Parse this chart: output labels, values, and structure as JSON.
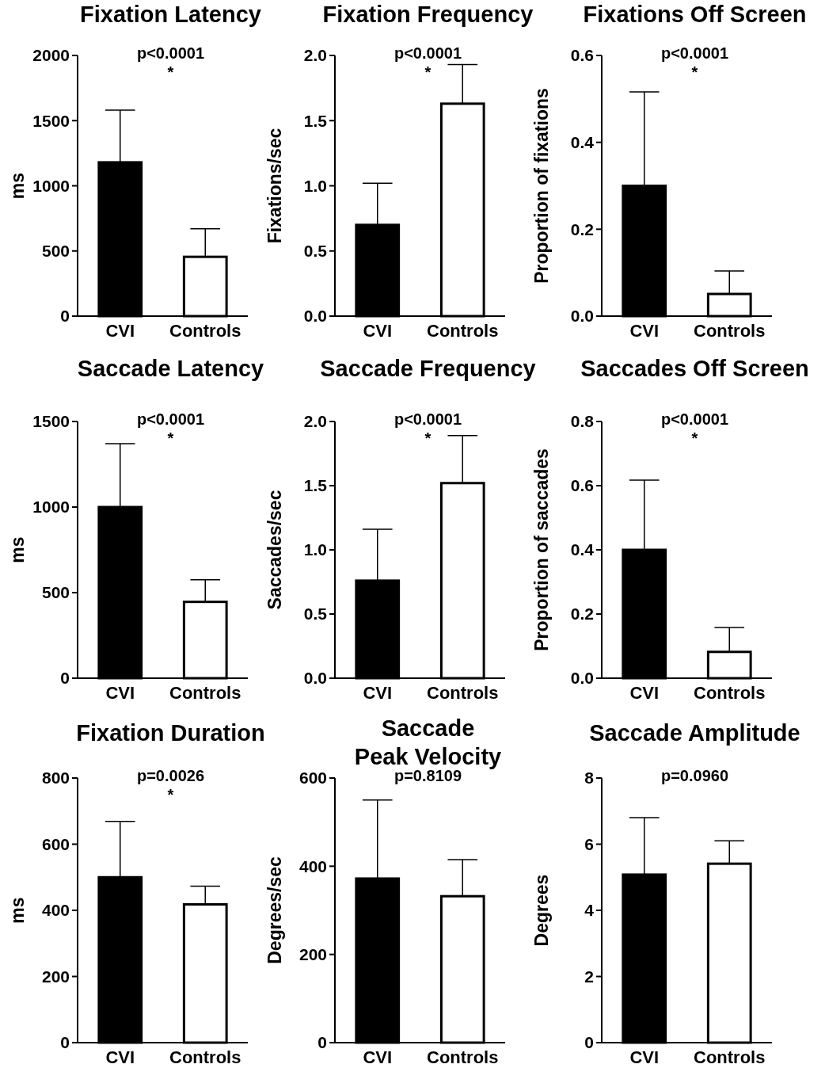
{
  "chart_data": [
    {
      "type": "bar",
      "title": "Fixation Latency",
      "ylabel": "ms",
      "categories": [
        "CVI",
        "Controls"
      ],
      "values": [
        1180,
        455
      ],
      "errors": [
        [
          1180,
          1580
        ],
        [
          455,
          670
        ]
      ],
      "colors": [
        "#000000",
        "#ffffff"
      ],
      "ylim": [
        0,
        2000
      ],
      "yticks": [
        0,
        500,
        1000,
        1500,
        2000
      ],
      "annotations": [
        "p<0.0001",
        "*"
      ]
    },
    {
      "type": "bar",
      "title": "Fixation Frequency",
      "ylabel": "Fixations/sec",
      "categories": [
        "CVI",
        "Controls"
      ],
      "values": [
        0.7,
        1.63
      ],
      "errors": [
        [
          0.7,
          1.02
        ],
        [
          1.63,
          1.93
        ]
      ],
      "colors": [
        "#000000",
        "#ffffff"
      ],
      "ylim": [
        0,
        2
      ],
      "yticks": [
        {
          "value": 0,
          "label": "0.0"
        },
        {
          "value": 0.5,
          "label": "0.5"
        },
        {
          "value": 1,
          "label": "1.0"
        },
        {
          "value": 1.5,
          "label": "1.5"
        },
        {
          "value": 2,
          "label": "2.0"
        }
      ],
      "annotations": [
        "p<0.0001",
        "*"
      ]
    },
    {
      "type": "bar",
      "title": "Fixations Off Screen",
      "ylabel": "Proportion of fixations",
      "categories": [
        "CVI",
        "Controls"
      ],
      "values": [
        0.3,
        0.051
      ],
      "errors": [
        [
          0.3,
          0.516
        ],
        [
          0.051,
          0.104
        ]
      ],
      "colors": [
        "#000000",
        "#ffffff"
      ],
      "ylim": [
        0,
        0.6
      ],
      "yticks": [
        {
          "value": 0,
          "label": "0.0"
        },
        0.2,
        0.4,
        0.6
      ],
      "annotations": [
        "p<0.0001",
        "*"
      ]
    },
    {
      "type": "bar",
      "title": "Saccade Latency",
      "ylabel": "ms",
      "categories": [
        "CVI",
        "Controls"
      ],
      "values": [
        1000,
        446
      ],
      "errors": [
        [
          1000,
          1370
        ],
        [
          446,
          575
        ]
      ],
      "colors": [
        "#000000",
        "#ffffff"
      ],
      "ylim": [
        0,
        1500
      ],
      "yticks": [
        0,
        500,
        1000,
        1500
      ],
      "annotations": [
        "p<0.0001",
        "*"
      ]
    },
    {
      "type": "bar",
      "title": "Saccade Frequency",
      "ylabel": "Saccades/sec",
      "categories": [
        "CVI",
        "Controls"
      ],
      "values": [
        0.76,
        1.52
      ],
      "errors": [
        [
          0.76,
          1.16
        ],
        [
          1.52,
          1.89
        ]
      ],
      "colors": [
        "#000000",
        "#ffffff"
      ],
      "ylim": [
        0,
        2
      ],
      "yticks": [
        {
          "value": 0,
          "label": "0.0"
        },
        {
          "value": 0.5,
          "label": "0.5"
        },
        {
          "value": 1,
          "label": "1.0"
        },
        {
          "value": 1.5,
          "label": "1.5"
        },
        {
          "value": 2,
          "label": "2.0"
        }
      ],
      "annotations": [
        "p<0.0001",
        "*"
      ]
    },
    {
      "type": "bar",
      "title": "Saccades Off Screen",
      "ylabel": "Proportion of saccades",
      "categories": [
        "CVI",
        "Controls"
      ],
      "values": [
        0.4,
        0.082
      ],
      "errors": [
        [
          0.4,
          0.617
        ],
        [
          0.082,
          0.158
        ]
      ],
      "colors": [
        "#000000",
        "#ffffff"
      ],
      "ylim": [
        0,
        0.8
      ],
      "yticks": [
        {
          "value": 0,
          "label": "0.0"
        },
        0.2,
        0.4,
        0.6,
        0.8
      ],
      "annotations": [
        "p<0.0001",
        "*"
      ]
    },
    {
      "type": "bar",
      "title": "Fixation Duration",
      "ylabel": "ms",
      "categories": [
        "CVI",
        "Controls"
      ],
      "values": [
        500,
        418
      ],
      "errors": [
        [
          500,
          669
        ],
        [
          418,
          473
        ]
      ],
      "colors": [
        "#000000",
        "#ffffff"
      ],
      "ylim": [
        0,
        800
      ],
      "yticks": [
        0,
        200,
        400,
        600,
        800
      ],
      "annotations": [
        "p=0.0026",
        "*"
      ]
    },
    {
      "type": "bar",
      "title": "Saccade\nPeak Velocity",
      "ylabel": "Degrees/sec",
      "categories": [
        "CVI",
        "Controls"
      ],
      "values": [
        372,
        332
      ],
      "errors": [
        [
          372,
          550
        ],
        [
          332,
          415
        ]
      ],
      "colors": [
        "#000000",
        "#ffffff"
      ],
      "ylim": [
        0,
        600
      ],
      "yticks": [
        0,
        200,
        400,
        600
      ],
      "annotations": [
        "p=0.8109"
      ]
    },
    {
      "type": "bar",
      "title": "Saccade Amplitude",
      "ylabel": "Degrees",
      "categories": [
        "CVI",
        "Controls"
      ],
      "values": [
        5.08,
        5.41
      ],
      "errors": [
        [
          5.08,
          6.8
        ],
        [
          5.41,
          6.1
        ]
      ],
      "colors": [
        "#000000",
        "#ffffff"
      ],
      "ylim": [
        0,
        8
      ],
      "yticks": [
        0,
        2,
        4,
        6,
        8
      ],
      "annotations": [
        "p=0.0960"
      ]
    }
  ]
}
